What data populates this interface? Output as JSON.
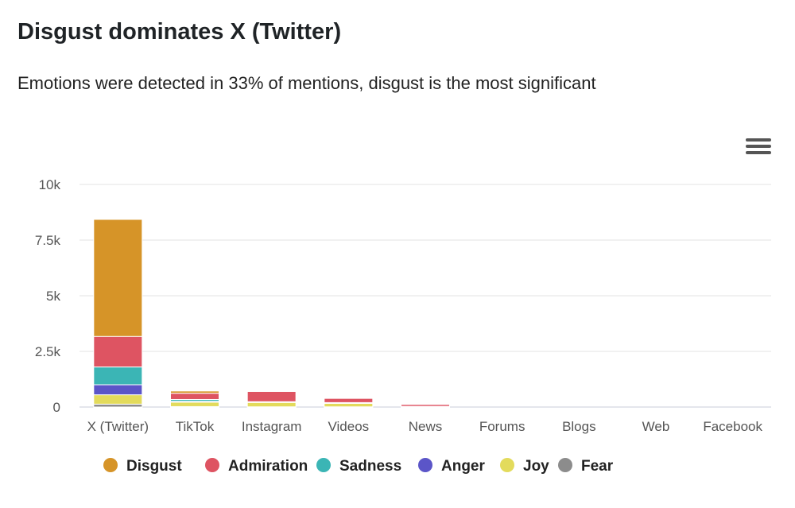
{
  "header": {
    "title": "Disgust dominates X (Twitter)",
    "subtitle": "Emotions were detected in 33% of mentions, disgust is the most significant"
  },
  "menu": {
    "icon": "hamburger-menu-icon"
  },
  "chart_data": {
    "type": "bar",
    "stacked": true,
    "categories": [
      "X (Twitter)",
      "TikTok",
      "Instagram",
      "Videos",
      "News",
      "Forums",
      "Blogs",
      "Web",
      "Facebook"
    ],
    "ylim": [
      0,
      10000
    ],
    "yticks": [
      0,
      2500,
      5000,
      7500,
      10000
    ],
    "ytick_labels": [
      "0",
      "2.5k",
      "5k",
      "7.5k",
      "10k"
    ],
    "grid": true,
    "legend_position": "bottom",
    "series": [
      {
        "name": "Fear",
        "color": "#8c8c8c",
        "values": [
          130,
          20,
          10,
          10,
          0,
          0,
          0,
          0,
          0
        ]
      },
      {
        "name": "Joy",
        "color": "#e3db5c",
        "values": [
          420,
          200,
          200,
          160,
          20,
          0,
          0,
          0,
          0
        ]
      },
      {
        "name": "Anger",
        "color": "#5b55c8",
        "values": [
          450,
          40,
          10,
          10,
          0,
          0,
          0,
          0,
          0
        ]
      },
      {
        "name": "Sadness",
        "color": "#3bb5b5",
        "values": [
          800,
          80,
          20,
          20,
          10,
          0,
          0,
          0,
          0
        ]
      },
      {
        "name": "Admiration",
        "color": "#de5462",
        "values": [
          1370,
          280,
          460,
          190,
          90,
          0,
          0,
          0,
          0
        ]
      },
      {
        "name": "Disgust",
        "color": "#d69428",
        "values": [
          5260,
          100,
          20,
          20,
          20,
          0,
          0,
          0,
          0
        ]
      }
    ],
    "legend_order": [
      "Disgust",
      "Admiration",
      "Sadness",
      "Anger",
      "Joy",
      "Fear"
    ]
  }
}
